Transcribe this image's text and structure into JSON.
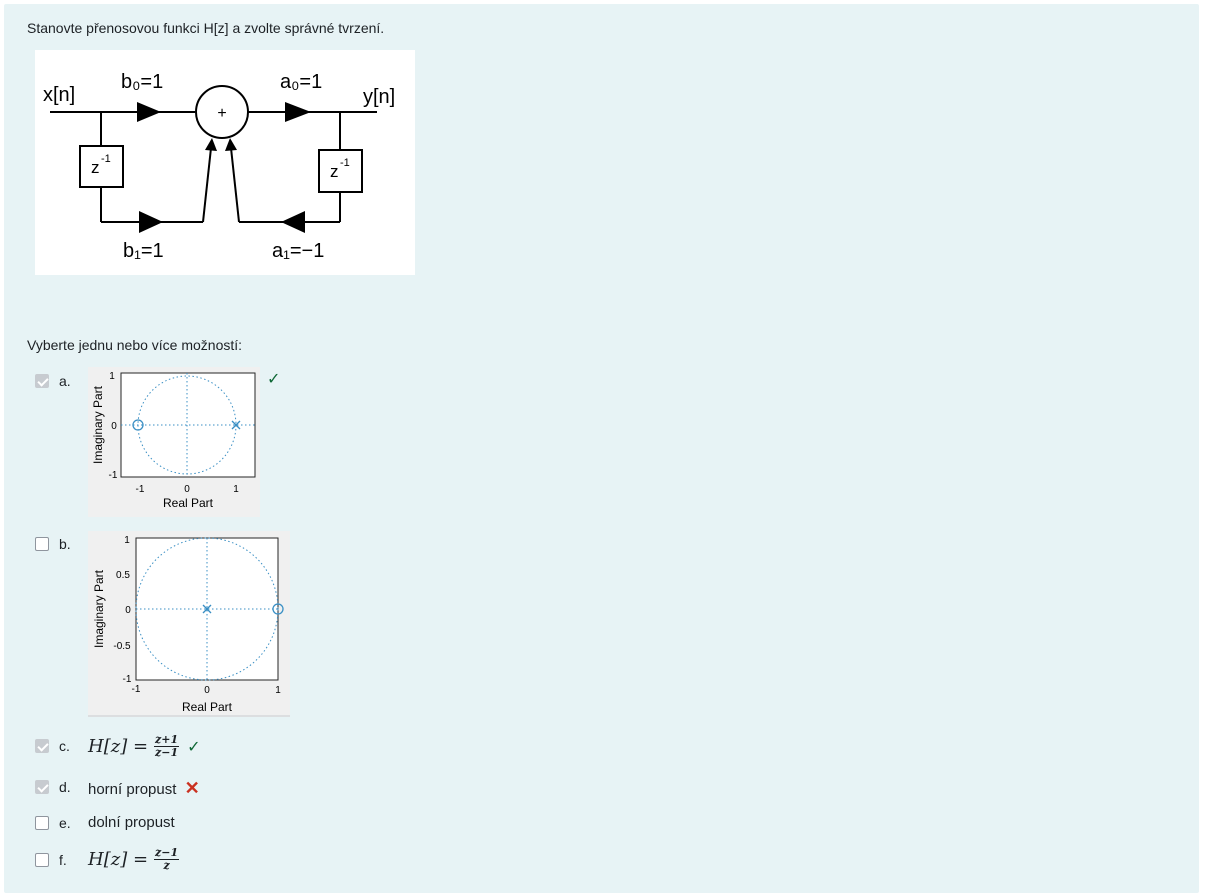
{
  "question": {
    "text": "Stanovte přenosovou funkci H[z] a zvolte správné tvrzení."
  },
  "diagram": {
    "input_label": "x[n]",
    "output_label": "y[n]",
    "b0_label": "b₀=1",
    "b1_label": "b₁=1",
    "a0_label": "a₀=1",
    "a1_label": "a₁=−1",
    "delay_label": "z",
    "delay_exp": "-1",
    "sum_label": "+"
  },
  "prompt": "Vyberte jednu nebo více možností:",
  "plot_axes": {
    "xlabel": "Real Part",
    "ylabel": "Imaginary Part"
  },
  "options": [
    {
      "letter": "a.",
      "checked": true,
      "feedback": "✓",
      "plot": {
        "xticks": [
          "-1",
          "0",
          "1"
        ],
        "yticks": [
          "1",
          "0",
          "-1"
        ],
        "zeros": [
          [
            -1,
            0
          ]
        ],
        "poles": [
          [
            1,
            0
          ]
        ]
      }
    },
    {
      "letter": "b.",
      "checked": false,
      "plot": {
        "xticks": [
          "-1",
          "0",
          "1"
        ],
        "yticks": [
          "1",
          "0.5",
          "0",
          "-0.5",
          "-1"
        ],
        "zeros": [
          [
            1,
            0
          ]
        ],
        "poles": [
          [
            0,
            0
          ]
        ]
      }
    },
    {
      "letter": "c.",
      "checked": true,
      "feedback": "✓",
      "math": {
        "lhs": "H[z] =",
        "num": "z+1",
        "den": "z−1"
      }
    },
    {
      "letter": "d.",
      "checked": true,
      "feedback": "✕",
      "text": "horní propust"
    },
    {
      "letter": "e.",
      "checked": false,
      "text": "dolní propust"
    },
    {
      "letter": "f.",
      "checked": false,
      "math": {
        "lhs": "H[z] =",
        "num": "z−1",
        "den": "z"
      }
    }
  ],
  "colors": {
    "panel_bg": "#e7f3f5",
    "correct": "#0f6836",
    "incorrect": "#ca3120",
    "plot_blue": "#3a8fc4"
  }
}
